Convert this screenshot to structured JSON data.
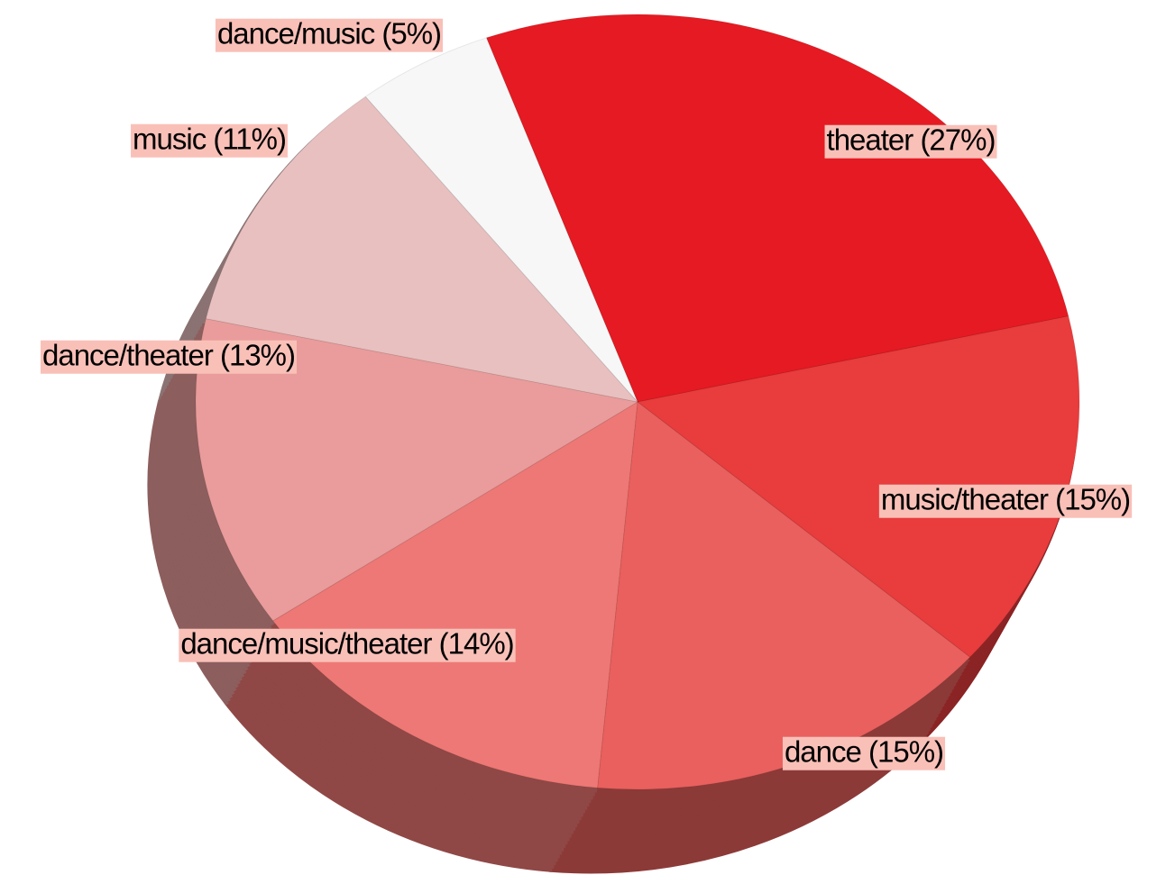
{
  "chart_data": {
    "type": "pie",
    "labels": [
      "theater (27%)",
      "music/theater (15%)",
      "dance (15%)",
      "dance/music/theater (14%)",
      "dance/theater (13%)",
      "music (11%)",
      "dance/music (5%)"
    ],
    "values": [
      27,
      15,
      15,
      14,
      13,
      11,
      5
    ],
    "colors": [
      "#e51a22",
      "#e83c3d",
      "#e9605e",
      "#ee7875",
      "#e99c9b",
      "#e8c0c0",
      "#f7f7f7"
    ],
    "label_background": "#f9c0b8"
  }
}
